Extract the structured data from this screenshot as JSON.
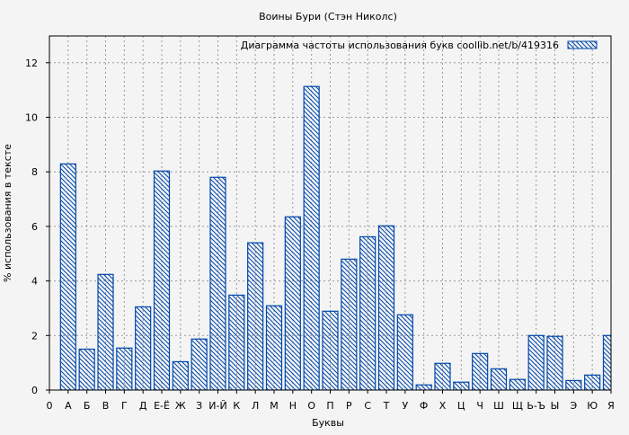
{
  "chart_data": {
    "type": "bar",
    "title": "Воины Бури (Стэн Николс)",
    "xlabel": "Буквы",
    "ylabel": "% использования в тексте",
    "legend": {
      "label": "Диаграмма частоты использования букв  coollib.net/b/419316",
      "placement": "top-right"
    },
    "x_first_tick": "0",
    "categories": [
      "А",
      "Б",
      "В",
      "Г",
      "Д",
      "Е-Ё",
      "Ж",
      "З",
      "И-Й",
      "К",
      "Л",
      "М",
      "Н",
      "О",
      "П",
      "Р",
      "С",
      "Т",
      "У",
      "Ф",
      "Х",
      "Ц",
      "Ч",
      "Ш",
      "Щ",
      "Ь-Ъ",
      "Ы",
      "Э",
      "Ю",
      "Я"
    ],
    "values": [
      8.29,
      1.5,
      4.24,
      1.54,
      3.05,
      8.03,
      1.04,
      1.87,
      7.8,
      3.48,
      5.4,
      3.09,
      6.35,
      11.13,
      2.89,
      4.8,
      5.62,
      6.02,
      2.76,
      0.19,
      0.98,
      0.29,
      1.34,
      0.78,
      0.39,
      2.0,
      1.97,
      0.35,
      0.55,
      2.0
    ],
    "yticks": [
      "0",
      "2",
      "4",
      "6",
      "8",
      "10",
      "12"
    ],
    "ylim": [
      0,
      13
    ],
    "grid": true,
    "bar_color": "#0047ab",
    "background": "#f4f4f4"
  }
}
